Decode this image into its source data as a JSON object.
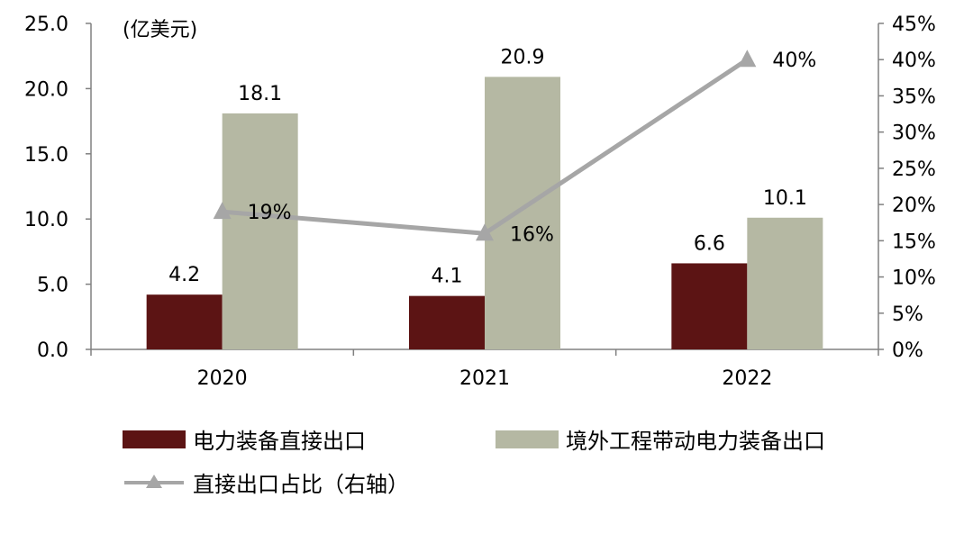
{
  "chart_data": {
    "type": "bar",
    "unit_label": "(亿美元)",
    "categories": [
      "2020",
      "2021",
      "2022"
    ],
    "series": [
      {
        "name": "电力装备直接出口",
        "type": "bar",
        "axis": "left",
        "color": "#5c1414",
        "values": [
          4.2,
          4.1,
          6.6
        ],
        "labels": [
          "4.2",
          "4.1",
          "6.6"
        ]
      },
      {
        "name": "境外工程带动电力装备出口",
        "type": "bar",
        "axis": "left",
        "color": "#b5b8a3",
        "values": [
          18.1,
          20.9,
          10.1
        ],
        "labels": [
          "18.1",
          "20.9",
          "10.1"
        ]
      },
      {
        "name": "直接出口占比（右轴）",
        "type": "line",
        "axis": "right",
        "color": "#a6a6a6",
        "marker": "triangle",
        "values": [
          19,
          16,
          40
        ],
        "labels": [
          "19%",
          "16%",
          "40%"
        ]
      }
    ],
    "y_left": {
      "min": 0,
      "max": 25,
      "step": 5,
      "tick_labels": [
        "0.0",
        "5.0",
        "10.0",
        "15.0",
        "20.0",
        "25.0"
      ]
    },
    "y_right": {
      "min": 0,
      "max": 45,
      "step": 5,
      "tick_labels": [
        "0%",
        "5%",
        "10%",
        "15%",
        "20%",
        "25%",
        "30%",
        "35%",
        "40%",
        "45%"
      ]
    },
    "grid": false,
    "legend_position": "bottom"
  }
}
